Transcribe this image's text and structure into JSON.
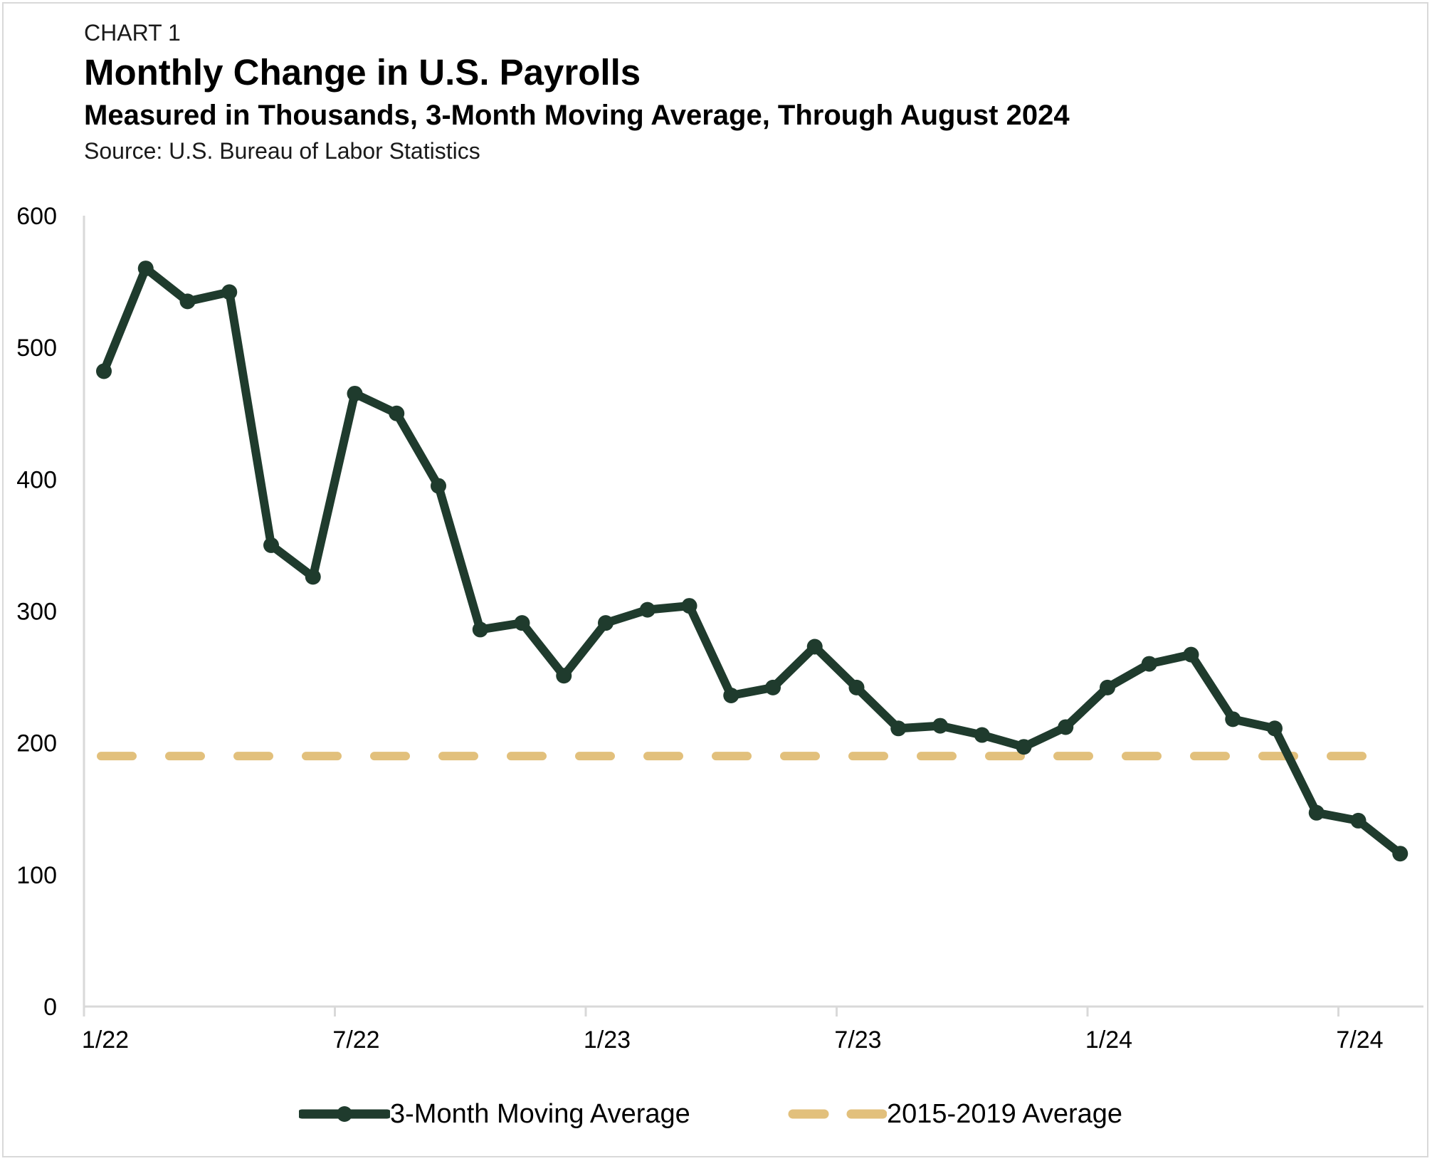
{
  "header": {
    "label": "CHART 1",
    "title": "Monthly Change in U.S. Payrolls",
    "subtitle": "Measured in Thousands, 3-Month Moving Average, Through August 2024",
    "source": "Source: U.S. Bureau of Labor Statistics"
  },
  "colors": {
    "series_line": "#1f3b2d",
    "average_line": "#e2c07c",
    "axis": "#d9d9d9",
    "frame": "#d9d9d9"
  },
  "chart_data": {
    "type": "line",
    "title": "Monthly Change in U.S. Payrolls",
    "subtitle": "Measured in Thousands, 3-Month Moving Average, Through August 2024",
    "xlabel": "",
    "ylabel": "",
    "ylim": [
      0,
      600
    ],
    "yticks": [
      0,
      100,
      200,
      300,
      400,
      500,
      600
    ],
    "x_tick_labels": [
      "1/22",
      "7/22",
      "1/23",
      "7/23",
      "1/24",
      "7/24"
    ],
    "x_tick_months": [
      "2022-01",
      "2022-07",
      "2023-01",
      "2023-07",
      "2024-01",
      "2024-07"
    ],
    "x_range_months": [
      "2022-01",
      "2024-09"
    ],
    "grid": false,
    "legend_position": "bottom",
    "series": [
      {
        "name": "3-Month Moving Average",
        "style": "solid-with-markers",
        "x": [
          "2022-01",
          "2022-02",
          "2022-03",
          "2022-04",
          "2022-05",
          "2022-06",
          "2022-07",
          "2022-08",
          "2022-09",
          "2022-10",
          "2022-11",
          "2022-12",
          "2023-01",
          "2023-02",
          "2023-03",
          "2023-04",
          "2023-05",
          "2023-06",
          "2023-07",
          "2023-08",
          "2023-09",
          "2023-10",
          "2023-11",
          "2023-12",
          "2024-01",
          "2024-02",
          "2024-03",
          "2024-04",
          "2024-05",
          "2024-06",
          "2024-07",
          "2024-08"
        ],
        "values": [
          482,
          560,
          535,
          542,
          350,
          326,
          465,
          450,
          395,
          286,
          291,
          251,
          291,
          301,
          304,
          236,
          242,
          273,
          242,
          211,
          213,
          206,
          197,
          212,
          242,
          260,
          267,
          218,
          211,
          147,
          141,
          116
        ]
      },
      {
        "name": "2015-2019 Average",
        "style": "dashed",
        "x": [
          "2022-01",
          "2024-08"
        ],
        "values": [
          190,
          190
        ]
      }
    ]
  },
  "legend": {
    "items": [
      {
        "label": "3-Month Moving Average"
      },
      {
        "label": "2015-2019 Average"
      }
    ]
  }
}
